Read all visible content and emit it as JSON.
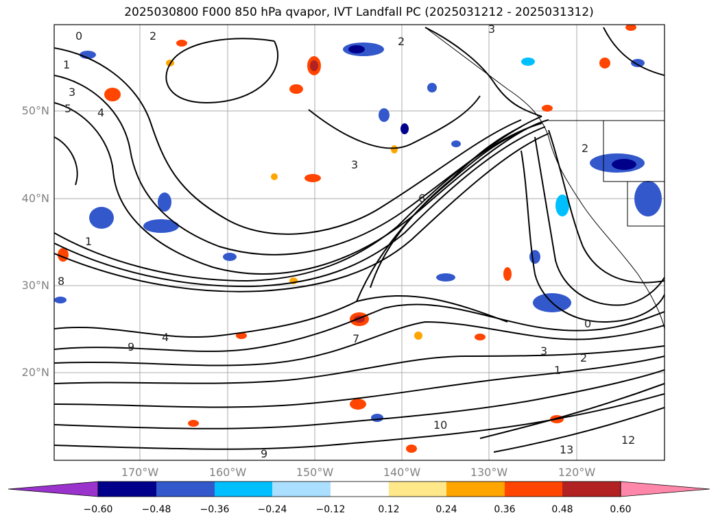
{
  "title": "2025030800 F000 850 hPa qvapor, IVT Landfall PC (2025031212 - 2025031312)",
  "map": {
    "lat_labels": [
      "50°N",
      "40°N",
      "30°N",
      "20°N"
    ],
    "lon_labels": [
      "170°W",
      "160°W",
      "150°W",
      "140°W",
      "130°W",
      "120°W"
    ],
    "contour_labels": [
      "0",
      "2",
      "3",
      "1",
      "3",
      "5",
      "4",
      "2",
      "3",
      "2",
      "6",
      "1",
      "8",
      "0",
      "9",
      "7",
      "1",
      "4",
      "10",
      "9",
      "13",
      "12",
      "2",
      "3"
    ]
  },
  "colorbar": {
    "ticks": [
      "−0.60",
      "−0.48",
      "−0.36",
      "−0.24",
      "−0.12",
      "0.12",
      "0.24",
      "0.36",
      "0.48",
      "0.60"
    ],
    "colors": [
      "#9933cc",
      "#00008b",
      "#3358cc",
      "#00bfff",
      "#aadfff",
      "#ffffff",
      "#ffe88a",
      "#ffa500",
      "#ff4500",
      "#b22222",
      "#ff88aa"
    ]
  }
}
